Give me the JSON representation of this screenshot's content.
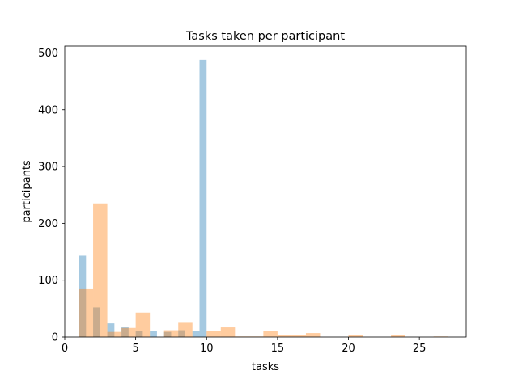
{
  "chart_data": {
    "type": "histogram",
    "title": "Tasks taken per participant",
    "xlabel": "tasks",
    "ylabel": "participants",
    "xlim": [
      0,
      28.3
    ],
    "ylim": [
      0,
      512
    ],
    "xticks": [
      0,
      5,
      10,
      15,
      20,
      25
    ],
    "yticks": [
      0,
      100,
      200,
      300,
      400,
      500
    ],
    "grid": false,
    "legend": "none",
    "series": [
      {
        "color": "#1f77b4",
        "opacity": 0.4,
        "bins": [
          {
            "x0": 1.0,
            "x1": 1.5,
            "value": 143
          },
          {
            "x0": 1.5,
            "x1": 2.0,
            "value": 0
          },
          {
            "x0": 2.0,
            "x1": 2.5,
            "value": 52
          },
          {
            "x0": 2.5,
            "x1": 3.0,
            "value": 0
          },
          {
            "x0": 3.0,
            "x1": 3.5,
            "value": 24
          },
          {
            "x0": 3.5,
            "x1": 4.0,
            "value": 0
          },
          {
            "x0": 4.0,
            "x1": 4.5,
            "value": 17
          },
          {
            "x0": 4.5,
            "x1": 5.0,
            "value": 0
          },
          {
            "x0": 5.0,
            "x1": 5.5,
            "value": 10
          },
          {
            "x0": 5.5,
            "x1": 6.0,
            "value": 0
          },
          {
            "x0": 6.0,
            "x1": 6.5,
            "value": 10
          },
          {
            "x0": 6.5,
            "x1": 7.0,
            "value": 0
          },
          {
            "x0": 7.0,
            "x1": 7.5,
            "value": 9
          },
          {
            "x0": 7.5,
            "x1": 8.0,
            "value": 0
          },
          {
            "x0": 8.0,
            "x1": 8.5,
            "value": 12
          },
          {
            "x0": 8.5,
            "x1": 9.0,
            "value": 0
          },
          {
            "x0": 9.0,
            "x1": 9.5,
            "value": 10
          },
          {
            "x0": 9.5,
            "x1": 10.0,
            "value": 488
          }
        ]
      },
      {
        "color": "#ff7f0e",
        "opacity": 0.4,
        "bins": [
          {
            "x0": 1.0,
            "x1": 2.0,
            "value": 84
          },
          {
            "x0": 2.0,
            "x1": 3.0,
            "value": 235
          },
          {
            "x0": 3.0,
            "x1": 4.0,
            "value": 9
          },
          {
            "x0": 4.0,
            "x1": 5.0,
            "value": 16
          },
          {
            "x0": 5.0,
            "x1": 6.0,
            "value": 43
          },
          {
            "x0": 6.0,
            "x1": 7.0,
            "value": 0
          },
          {
            "x0": 7.0,
            "x1": 8.0,
            "value": 12
          },
          {
            "x0": 8.0,
            "x1": 9.0,
            "value": 25
          },
          {
            "x0": 9.0,
            "x1": 10.0,
            "value": 0
          },
          {
            "x0": 10.0,
            "x1": 11.0,
            "value": 10
          },
          {
            "x0": 11.0,
            "x1": 12.0,
            "value": 17
          },
          {
            "x0": 12.0,
            "x1": 13.0,
            "value": 1
          },
          {
            "x0": 13.0,
            "x1": 14.0,
            "value": 1
          },
          {
            "x0": 14.0,
            "x1": 15.0,
            "value": 10
          },
          {
            "x0": 15.0,
            "x1": 16.0,
            "value": 3
          },
          {
            "x0": 16.0,
            "x1": 17.0,
            "value": 3
          },
          {
            "x0": 17.0,
            "x1": 18.0,
            "value": 7
          },
          {
            "x0": 18.0,
            "x1": 19.0,
            "value": 0
          },
          {
            "x0": 19.0,
            "x1": 20.0,
            "value": 0
          },
          {
            "x0": 20.0,
            "x1": 21.0,
            "value": 3
          },
          {
            "x0": 21.0,
            "x1": 22.0,
            "value": 0
          },
          {
            "x0": 22.0,
            "x1": 23.0,
            "value": 0
          },
          {
            "x0": 23.0,
            "x1": 24.0,
            "value": 3
          },
          {
            "x0": 24.0,
            "x1": 25.0,
            "value": 0
          },
          {
            "x0": 25.0,
            "x1": 26.0,
            "value": 0
          },
          {
            "x0": 26.0,
            "x1": 27.0,
            "value": 1
          }
        ]
      }
    ]
  }
}
